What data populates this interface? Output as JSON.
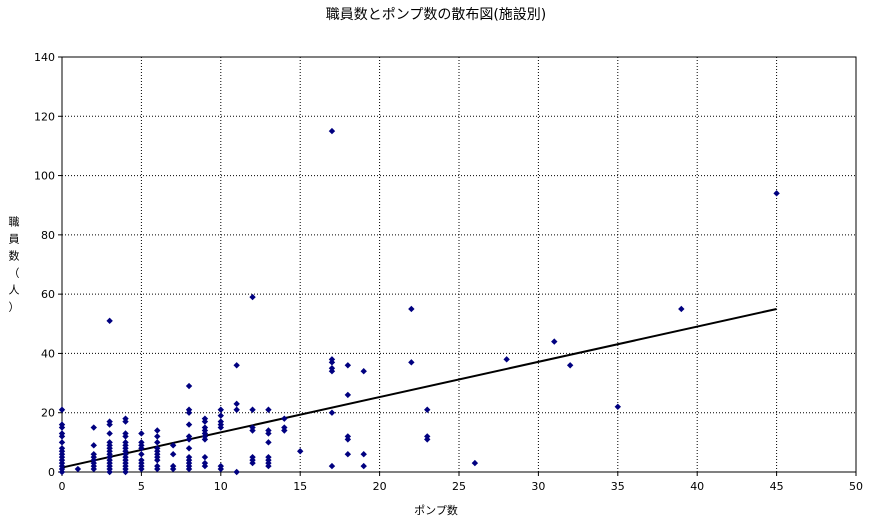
{
  "chart_data": {
    "type": "scatter",
    "title": "職員数とポンプ数の散布図(施設別)",
    "xlabel": "ポンプ数",
    "ylabel": "職員数（人）",
    "xlim": [
      0,
      50
    ],
    "ylim": [
      0,
      140
    ],
    "xticks": [
      0,
      5,
      10,
      15,
      20,
      25,
      30,
      35,
      40,
      45,
      50
    ],
    "yticks": [
      0,
      20,
      40,
      60,
      80,
      100,
      120,
      140
    ],
    "grid": true,
    "legend": "none",
    "marker_color": "#000080",
    "trendline_color": "#000000",
    "trendline": {
      "x": [
        0,
        45
      ],
      "y": [
        1.5,
        55
      ]
    },
    "points": [
      [
        0,
        0
      ],
      [
        0,
        1
      ],
      [
        0,
        2
      ],
      [
        0,
        3
      ],
      [
        0,
        4
      ],
      [
        0,
        5
      ],
      [
        0,
        6
      ],
      [
        0,
        7
      ],
      [
        0,
        8
      ],
      [
        0,
        10
      ],
      [
        0,
        12
      ],
      [
        0,
        13
      ],
      [
        0,
        15
      ],
      [
        0,
        16
      ],
      [
        0,
        21
      ],
      [
        1,
        1
      ],
      [
        2,
        1
      ],
      [
        2,
        2
      ],
      [
        2,
        3
      ],
      [
        2,
        4
      ],
      [
        2,
        5
      ],
      [
        2,
        6
      ],
      [
        2,
        9
      ],
      [
        2,
        15
      ],
      [
        3,
        0
      ],
      [
        3,
        1
      ],
      [
        3,
        2
      ],
      [
        3,
        3
      ],
      [
        3,
        4
      ],
      [
        3,
        5
      ],
      [
        3,
        6
      ],
      [
        3,
        7
      ],
      [
        3,
        8
      ],
      [
        3,
        9
      ],
      [
        3,
        10
      ],
      [
        3,
        13
      ],
      [
        3,
        16
      ],
      [
        3,
        17
      ],
      [
        3,
        51
      ],
      [
        4,
        0
      ],
      [
        4,
        1
      ],
      [
        4,
        2
      ],
      [
        4,
        3
      ],
      [
        4,
        4
      ],
      [
        4,
        5
      ],
      [
        4,
        6
      ],
      [
        4,
        7
      ],
      [
        4,
        8
      ],
      [
        4,
        9
      ],
      [
        4,
        10
      ],
      [
        4,
        12
      ],
      [
        4,
        13
      ],
      [
        4,
        17
      ],
      [
        4,
        18
      ],
      [
        5,
        1
      ],
      [
        5,
        2
      ],
      [
        5,
        3
      ],
      [
        5,
        4
      ],
      [
        5,
        6
      ],
      [
        5,
        8
      ],
      [
        5,
        9
      ],
      [
        5,
        10
      ],
      [
        5,
        13
      ],
      [
        6,
        1
      ],
      [
        6,
        2
      ],
      [
        6,
        4
      ],
      [
        6,
        5
      ],
      [
        6,
        6
      ],
      [
        6,
        7
      ],
      [
        6,
        8
      ],
      [
        6,
        10
      ],
      [
        6,
        12
      ],
      [
        6,
        14
      ],
      [
        7,
        1
      ],
      [
        7,
        2
      ],
      [
        7,
        6
      ],
      [
        7,
        9
      ],
      [
        8,
        1
      ],
      [
        8,
        2
      ],
      [
        8,
        3
      ],
      [
        8,
        4
      ],
      [
        8,
        5
      ],
      [
        8,
        8
      ],
      [
        8,
        11
      ],
      [
        8,
        12
      ],
      [
        8,
        16
      ],
      [
        8,
        20
      ],
      [
        8,
        21
      ],
      [
        8,
        29
      ],
      [
        9,
        2
      ],
      [
        9,
        3
      ],
      [
        9,
        5
      ],
      [
        9,
        11
      ],
      [
        9,
        12
      ],
      [
        9,
        13
      ],
      [
        9,
        14
      ],
      [
        9,
        15
      ],
      [
        9,
        17
      ],
      [
        9,
        18
      ],
      [
        10,
        1
      ],
      [
        10,
        2
      ],
      [
        10,
        15
      ],
      [
        10,
        16
      ],
      [
        10,
        17
      ],
      [
        10,
        19
      ],
      [
        10,
        21
      ],
      [
        11,
        0
      ],
      [
        11,
        21
      ],
      [
        11,
        23
      ],
      [
        11,
        36
      ],
      [
        12,
        3
      ],
      [
        12,
        4
      ],
      [
        12,
        5
      ],
      [
        12,
        14
      ],
      [
        12,
        15
      ],
      [
        12,
        21
      ],
      [
        12,
        59
      ],
      [
        13,
        2
      ],
      [
        13,
        3
      ],
      [
        13,
        4
      ],
      [
        13,
        5
      ],
      [
        13,
        10
      ],
      [
        13,
        13
      ],
      [
        13,
        14
      ],
      [
        13,
        21
      ],
      [
        14,
        14
      ],
      [
        14,
        15
      ],
      [
        14,
        18
      ],
      [
        15,
        7
      ],
      [
        17,
        2
      ],
      [
        17,
        20
      ],
      [
        17,
        34
      ],
      [
        17,
        35
      ],
      [
        17,
        37
      ],
      [
        17,
        38
      ],
      [
        17,
        115
      ],
      [
        18,
        6
      ],
      [
        18,
        11
      ],
      [
        18,
        12
      ],
      [
        18,
        26
      ],
      [
        18,
        36
      ],
      [
        19,
        2
      ],
      [
        19,
        6
      ],
      [
        19,
        34
      ],
      [
        22,
        37
      ],
      [
        22,
        55
      ],
      [
        23,
        11
      ],
      [
        23,
        12
      ],
      [
        23,
        21
      ],
      [
        26,
        3
      ],
      [
        28,
        38
      ],
      [
        31,
        44
      ],
      [
        32,
        36
      ],
      [
        35,
        22
      ],
      [
        39,
        55
      ],
      [
        45,
        94
      ]
    ]
  }
}
